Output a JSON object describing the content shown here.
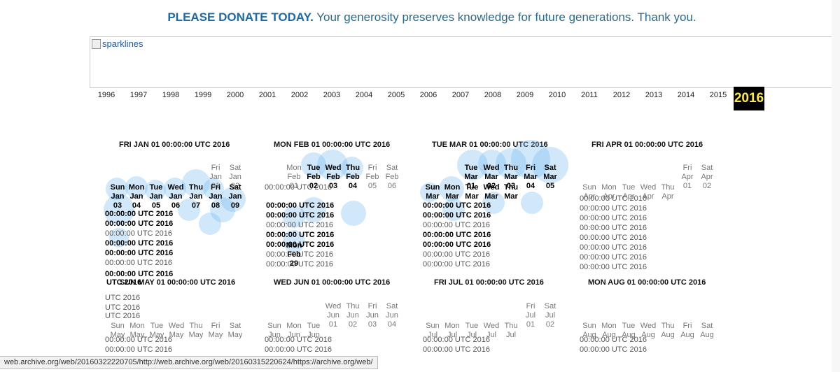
{
  "banner": {
    "strong": "PLEASE DONATE TODAY.",
    "text": " Your generosity preserves knowledge for future generations. Thank you."
  },
  "sparklines": {
    "alt": "sparklines"
  },
  "years": [
    "1996",
    "1997",
    "1998",
    "1999",
    "2000",
    "2001",
    "2002",
    "2003",
    "2004",
    "2005",
    "2006",
    "2007",
    "2008",
    "2009",
    "2010",
    "2011",
    "2012",
    "2013",
    "2014",
    "2015",
    "2016"
  ],
  "selected_year": "2016",
  "months": [
    {
      "title": "FRI JAN 01 00:00:00 UTC 2016"
    },
    {
      "title": "MON FEB 01 00:00:00 UTC 2016"
    },
    {
      "title": "TUE MAR 01 00:00:00 UTC 2016"
    },
    {
      "title": "FRI APR 01 00:00:00 UTC 2016"
    }
  ],
  "months_row2": [
    {
      "title": "SUN MAY 01 00:00:00 UTC 2016"
    },
    {
      "title": "WED JUN 01 00:00:00 UTC 2016"
    },
    {
      "title": "FRI JUL 01 00:00:00 UTC 2016"
    },
    {
      "title": "MON AUG 01 00:00:00 UTC 2016"
    }
  ],
  "cells": {
    "jan_row1": [
      [
        "Fri",
        "Jan",
        "01"
      ],
      [
        "Sat",
        "Jan",
        "02"
      ]
    ],
    "jan_row2": [
      [
        "Sun",
        "Jan",
        "03"
      ],
      [
        "Mon",
        "Jan",
        "04"
      ],
      [
        "Tue",
        "Jan",
        "05"
      ],
      [
        "Wed",
        "Jan",
        "06"
      ],
      [
        "Thu",
        "Jan",
        "07"
      ],
      [
        "Fri",
        "Jan",
        "08"
      ],
      [
        "Sat",
        "Jan",
        "09"
      ]
    ],
    "feb_row1": [
      [
        "Mon",
        "Feb",
        "01"
      ],
      [
        "Tue",
        "Feb",
        "02"
      ],
      [
        "Wed",
        "Feb",
        "03"
      ],
      [
        "Thu",
        "Feb",
        "04"
      ],
      [
        "Fri",
        "Feb",
        "05"
      ],
      [
        "Sat",
        "Feb",
        "06"
      ]
    ],
    "mar_row1": [
      [
        "Tue",
        "Mar",
        "01"
      ],
      [
        "Wed",
        "Mar",
        "02"
      ],
      [
        "Thu",
        "Mar",
        "03"
      ],
      [
        "Fri",
        "Mar",
        "04"
      ],
      [
        "Sat",
        "Mar",
        "05"
      ]
    ],
    "apr_row1": [
      [
        "Fri",
        "Apr",
        "01"
      ],
      [
        "Sat",
        "Apr",
        "02"
      ]
    ],
    "apr_row2": [
      [
        "Sun",
        "Apr",
        "03"
      ],
      [
        "Mon",
        "Apr",
        "04"
      ],
      [
        "Tue",
        "Apr",
        "05"
      ],
      [
        "Wed",
        "Apr",
        "06"
      ],
      [
        "Thu",
        "Apr",
        "07"
      ]
    ],
    "jun_row1": [
      [
        "Wed",
        "Jun",
        "01"
      ],
      [
        "Thu",
        "Jun",
        "02"
      ],
      [
        "Fri",
        "Jun",
        "03"
      ],
      [
        "Sat",
        "Jun",
        "04"
      ]
    ],
    "jul_row1": [
      [
        "Fri",
        "Jul",
        "01"
      ],
      [
        "Sat",
        "Jul",
        "02"
      ]
    ],
    "aug_row1": [
      [
        "Sun",
        "Aug"
      ],
      [
        "Mon",
        "Aug"
      ],
      [
        "Tue",
        "Aug"
      ],
      [
        "Wed",
        "Aug"
      ],
      [
        "Thu",
        "Aug"
      ],
      [
        "Fri",
        "Aug"
      ],
      [
        "Sat",
        "Aug"
      ]
    ],
    "may_row1": [
      [
        "Sun",
        "May"
      ],
      [
        "Mon",
        "May"
      ],
      [
        "Tue",
        "May"
      ],
      [
        "Wed",
        "May"
      ],
      [
        "Thu",
        "May"
      ],
      [
        "Fri",
        "May"
      ],
      [
        "Sat",
        "May"
      ]
    ],
    "jun_row2": [
      [
        "Sun",
        "Jun"
      ],
      [
        "Mon",
        "Jun"
      ],
      [
        "Tue",
        "Jun"
      ]
    ],
    "jul_row2": [
      [
        "Sun",
        "Jul"
      ],
      [
        "Mon",
        "Jul"
      ],
      [
        "Tue",
        "Jul"
      ],
      [
        "Wed",
        "Jul"
      ],
      [
        "Thu",
        "Jul"
      ]
    ],
    "feb_last": [
      "Mon",
      "Feb",
      "29"
    ]
  },
  "overlap_text": {
    "utc": "00:00:00 UTC 2016",
    "short": "UTC 2016"
  },
  "status_bar": "web.archive.org/web/20160322220705/http://web.archive.org/web/20160315220624/https://archive.org/web/"
}
